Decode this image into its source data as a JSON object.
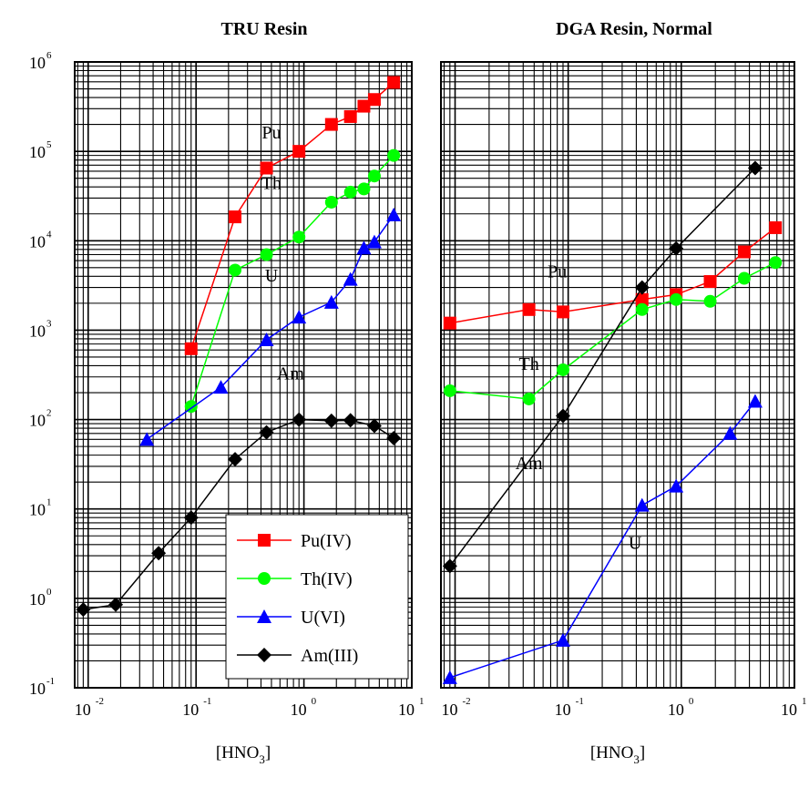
{
  "chart_data": [
    {
      "type": "line",
      "title": "TRU Resin",
      "xlabel": "[HNO3]",
      "xscale": "log",
      "yscale": "log",
      "xlim": [
        0.0075,
        10
      ],
      "ylim": [
        0.1,
        1000000
      ],
      "x_ticks": [
        {
          "base": "10",
          "exp": "-2"
        },
        {
          "base": "10",
          "exp": "-1"
        },
        {
          "base": "10",
          "exp": "0"
        },
        {
          "base": "10",
          "exp": "1"
        }
      ],
      "y_ticks": [
        {
          "base": "10",
          "exp": "-1"
        },
        {
          "base": "10",
          "exp": "0"
        },
        {
          "base": "10",
          "exp": "1"
        },
        {
          "base": "10",
          "exp": "2"
        },
        {
          "base": "10",
          "exp": "3"
        },
        {
          "base": "10",
          "exp": "4"
        },
        {
          "base": "10",
          "exp": "5"
        },
        {
          "base": "10",
          "exp": "6"
        }
      ],
      "grid": true,
      "series": [
        {
          "name": "Pu(IV)",
          "color": "#ff0000",
          "marker": "square",
          "x": [
            0.09,
            0.23,
            0.45,
            0.9,
            1.8,
            2.7,
            3.6,
            4.5,
            6.8
          ],
          "y": [
            620,
            18500,
            65000,
            100000,
            200000,
            245000,
            320000,
            380000,
            590000
          ]
        },
        {
          "name": "Th(IV)",
          "color": "#00ff00",
          "marker": "circle",
          "x": [
            0.09,
            0.23,
            0.45,
            0.9,
            1.8,
            2.7,
            3.6,
            4.5,
            6.8
          ],
          "y": [
            140,
            4700,
            7000,
            11000,
            27000,
            35000,
            38000,
            53000,
            90000
          ]
        },
        {
          "name": "U(VI)",
          "color": "#0000ff",
          "marker": "triangle",
          "x": [
            0.035,
            0.17,
            0.45,
            0.9,
            1.8,
            2.7,
            3.6,
            4.5,
            6.8
          ],
          "y": [
            60,
            230,
            780,
            1400,
            2050,
            3700,
            8300,
            9700,
            19500
          ]
        },
        {
          "name": "Am(III)",
          "color": "#000000",
          "marker": "diamond",
          "x": [
            0.009,
            0.018,
            0.045,
            0.09,
            0.23,
            0.45,
            0.9,
            1.8,
            2.7,
            4.5,
            6.8
          ],
          "y": [
            0.75,
            0.85,
            3.2,
            8,
            36,
            72,
            100,
            97,
            98,
            85,
            62
          ]
        }
      ],
      "annotations": [
        {
          "text": "Pu",
          "x": 0.5,
          "y": 140000
        },
        {
          "text": "Th",
          "x": 0.5,
          "y": 38000
        },
        {
          "text": "U",
          "x": 0.5,
          "y": 3500
        },
        {
          "text": "Am",
          "x": 0.75,
          "y": 280
        }
      ],
      "legend": {
        "placement": "bottom-right",
        "entries": [
          "Pu(IV)",
          "Th(IV)",
          "U(VI)",
          "Am(III)"
        ]
      }
    },
    {
      "type": "line",
      "title": "DGA Resin, Normal",
      "xlabel": "[HNO3]",
      "xscale": "log",
      "yscale": "log",
      "xlim": [
        0.0075,
        10
      ],
      "ylim": [
        0.1,
        1000000
      ],
      "x_ticks": [
        {
          "base": "10",
          "exp": "-2"
        },
        {
          "base": "10",
          "exp": "-1"
        },
        {
          "base": "10",
          "exp": "0"
        },
        {
          "base": "10",
          "exp": "1"
        }
      ],
      "grid": true,
      "series": [
        {
          "name": "Pu(IV)",
          "color": "#ff0000",
          "marker": "square",
          "x": [
            0.009,
            0.045,
            0.09,
            0.45,
            0.9,
            1.8,
            3.6,
            6.8
          ],
          "y": [
            1200,
            1700,
            1600,
            2200,
            2500,
            3500,
            7500,
            14000
          ]
        },
        {
          "name": "Th(IV)",
          "color": "#00ff00",
          "marker": "circle",
          "x": [
            0.009,
            0.045,
            0.09,
            0.45,
            0.9,
            1.8,
            3.6,
            6.8
          ],
          "y": [
            210,
            170,
            360,
            1700,
            2200,
            2100,
            3800,
            5700
          ]
        },
        {
          "name": "U(VI)",
          "color": "#0000ff",
          "marker": "triangle",
          "x": [
            0.009,
            0.09,
            0.45,
            0.9,
            2.7,
            4.5
          ],
          "y": [
            0.13,
            0.34,
            11,
            18,
            70,
            160
          ]
        },
        {
          "name": "Am(III)",
          "color": "#000000",
          "marker": "diamond",
          "x": [
            0.009,
            0.09,
            0.45,
            0.9,
            4.5
          ],
          "y": [
            2.3,
            110,
            3000,
            8200,
            65000
          ]
        }
      ],
      "annotations": [
        {
          "text": "Pu",
          "x": 0.08,
          "y": 3900
        },
        {
          "text": "Th",
          "x": 0.045,
          "y": 360
        },
        {
          "text": "Am",
          "x": 0.045,
          "y": 28
        },
        {
          "text": "U",
          "x": 0.39,
          "y": 3.6
        }
      ]
    }
  ]
}
